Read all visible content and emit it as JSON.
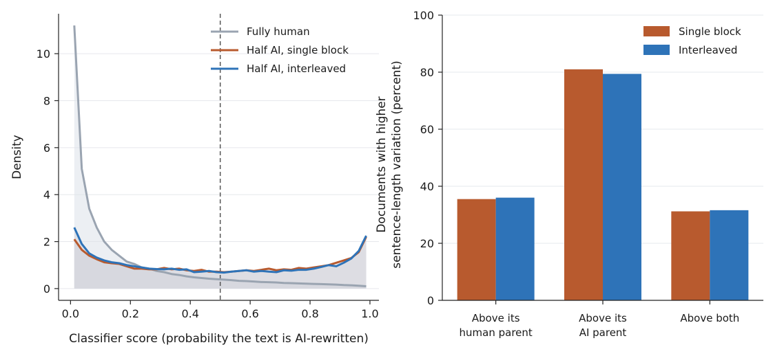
{
  "chart_data": [
    {
      "type": "line",
      "xlabel": "Classifier score (probability the text is AI-rewritten)",
      "ylabel": "Density",
      "xlim": [
        -0.04,
        1.03
      ],
      "ylim": [
        -0.5,
        11.7
      ],
      "xticks": [
        0.0,
        0.2,
        0.4,
        0.6,
        0.8,
        1.0
      ],
      "xtick_labels": [
        "0.0",
        "0.2",
        "0.4",
        "0.6",
        "0.8",
        "1.0"
      ],
      "yticks": [
        0,
        2,
        4,
        6,
        8,
        10
      ],
      "ytick_labels": [
        "0",
        "2",
        "4",
        "6",
        "8",
        "10"
      ],
      "grid": "y",
      "legend": "top-right",
      "vline": 0.5,
      "x": [
        0.0125,
        0.0375,
        0.0625,
        0.0875,
        0.1125,
        0.1375,
        0.1625,
        0.1875,
        0.2125,
        0.2375,
        0.2625,
        0.2875,
        0.3125,
        0.3375,
        0.3625,
        0.3875,
        0.4125,
        0.4375,
        0.4625,
        0.4875,
        0.5125,
        0.5375,
        0.5625,
        0.5875,
        0.6125,
        0.6375,
        0.6625,
        0.6875,
        0.7125,
        0.7375,
        0.7625,
        0.7875,
        0.8125,
        0.8375,
        0.8625,
        0.8875,
        0.9125,
        0.9375,
        0.9625,
        0.9875
      ],
      "series": [
        {
          "name": "Fully human",
          "color": "#9aa4b1",
          "fill": "#dde2ea",
          "values": [
            11.2,
            5.1,
            3.4,
            2.6,
            2.0,
            1.65,
            1.4,
            1.15,
            1.05,
            0.9,
            0.85,
            0.75,
            0.7,
            0.62,
            0.58,
            0.52,
            0.48,
            0.45,
            0.42,
            0.4,
            0.38,
            0.36,
            0.33,
            0.32,
            0.3,
            0.28,
            0.27,
            0.26,
            0.24,
            0.23,
            0.22,
            0.21,
            0.2,
            0.19,
            0.18,
            0.17,
            0.15,
            0.14,
            0.12,
            0.1
          ]
        },
        {
          "name": "Half AI, single block",
          "color": "#b85a2e",
          "fill": "#cfcfd6",
          "values": [
            2.1,
            1.65,
            1.4,
            1.25,
            1.12,
            1.08,
            1.05,
            0.95,
            0.85,
            0.85,
            0.82,
            0.82,
            0.88,
            0.82,
            0.85,
            0.78,
            0.75,
            0.8,
            0.72,
            0.72,
            0.7,
            0.72,
            0.75,
            0.78,
            0.75,
            0.8,
            0.85,
            0.78,
            0.82,
            0.8,
            0.88,
            0.85,
            0.9,
            0.95,
            1.0,
            1.1,
            1.2,
            1.3,
            1.55,
            2.2
          ]
        },
        {
          "name": "Half AI, interleaved",
          "color": "#2e73b8",
          "fill": "#cfcfd6",
          "values": [
            2.6,
            1.9,
            1.5,
            1.32,
            1.2,
            1.12,
            1.08,
            1.0,
            0.95,
            0.9,
            0.85,
            0.83,
            0.82,
            0.85,
            0.8,
            0.82,
            0.7,
            0.72,
            0.75,
            0.7,
            0.68,
            0.72,
            0.75,
            0.78,
            0.72,
            0.75,
            0.72,
            0.7,
            0.78,
            0.76,
            0.8,
            0.8,
            0.85,
            0.92,
            1.0,
            0.95,
            1.1,
            1.28,
            1.6,
            2.25
          ]
        }
      ]
    },
    {
      "type": "bar",
      "ylabel": "Documents with higher\nsentence-length variation (percent)",
      "ylim": [
        0,
        100
      ],
      "yticks": [
        0,
        20,
        40,
        60,
        80,
        100
      ],
      "ytick_labels": [
        "0",
        "20",
        "40",
        "60",
        "80",
        "100"
      ],
      "grid": "y",
      "legend": "top-right",
      "categories": [
        "Above its\nhuman parent",
        "Above its\nAI parent",
        "Above both"
      ],
      "series": [
        {
          "name": "Single block",
          "color": "#b85a2e",
          "values": [
            35.5,
            81.0,
            31.2
          ]
        },
        {
          "name": "Interleaved",
          "color": "#2e73b8",
          "values": [
            36.0,
            79.4,
            31.6
          ]
        }
      ]
    }
  ]
}
